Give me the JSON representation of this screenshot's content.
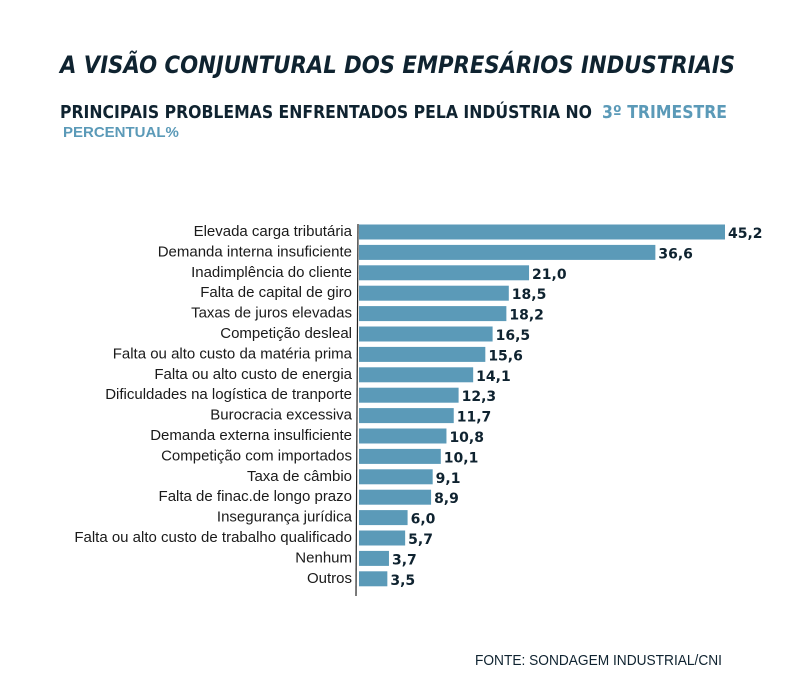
{
  "chart_data": {
    "type": "bar",
    "orientation": "horizontal",
    "title": "A VISÃO CONJUNTURAL DOS EMPRESÁRIOS INDUSTRIAIS",
    "subtitle": "PRINCIPAIS PROBLEMAS ENFRENTADOS PELA INDÚSTRIA NO",
    "subtitle_highlight": "3º TRIMESTRE",
    "unit_label": "PERCENTUAL%",
    "source": "FONTE: SONDAGEM INDUSTRIAL/CNI",
    "color": "#5b9ab8",
    "categories": [
      "Elevada carga tributária",
      "Demanda interna insuficiente",
      "Inadimplência do cliente",
      "Falta de capital de giro",
      "Taxas de juros elevadas",
      "Competição desleal",
      "Falta ou alto custo da matéria prima",
      "Falta ou alto custo de energia",
      "Dificuldades na logística de tranporte",
      "Burocracia excessiva",
      "Demanda externa insulficiente",
      "Competição com importados",
      "Taxa de câmbio",
      "Falta de finac.de longo prazo",
      "Insegurança jurídica",
      "Falta ou alto custo de trabalho qualificado",
      "Nenhum",
      "Outros"
    ],
    "values": [
      45.2,
      36.6,
      21.0,
      18.5,
      18.2,
      16.5,
      15.6,
      14.1,
      12.3,
      11.7,
      10.8,
      10.1,
      9.1,
      8.9,
      6.0,
      5.7,
      3.7,
      3.5
    ],
    "value_labels": [
      "45,2",
      "36,6",
      "21,0",
      "18,5",
      "18,2",
      "16,5",
      "15,6",
      "14,1",
      "12,3",
      "11,7",
      "10,8",
      "10,1",
      "9,1",
      "8,9",
      "6,0",
      "5,7",
      "3,7",
      "3,5"
    ]
  }
}
